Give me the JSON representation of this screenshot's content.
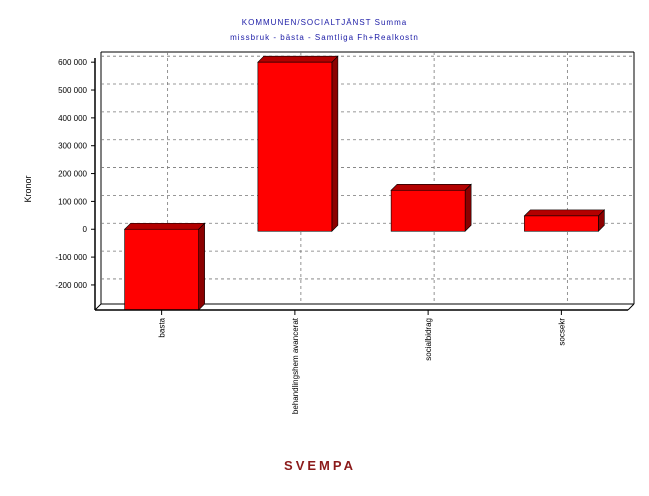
{
  "chart_data": {
    "type": "bar",
    "title": "KOMMUNEN/SOCIALTJÄNST Summa",
    "subtitle": "missbruk - bästa - Samtliga Fh+Realkostn",
    "xlabel": "SVEMPA",
    "ylabel": "Kronor",
    "categories": [
      "basta",
      "behandlingshem avancerat",
      "socialbidrag",
      "socsekr"
    ],
    "values": [
      -280000,
      600000,
      140000,
      48000
    ],
    "ylim": [
      -290000,
      615000
    ],
    "yticks": [
      {
        "value": 600000,
        "label": "600 000"
      },
      {
        "value": 500000,
        "label": "500 000"
      },
      {
        "value": 400000,
        "label": "400 000"
      },
      {
        "value": 300000,
        "label": "300 000"
      },
      {
        "value": 200000,
        "label": "200 000"
      },
      {
        "value": 100000,
        "label": "100 000"
      },
      {
        "value": 0,
        "label": "0"
      },
      {
        "value": -100000,
        "label": "-100 000"
      },
      {
        "value": -200000,
        "label": "-200 000"
      }
    ],
    "grid": true,
    "colors": {
      "bar_front": "#ff0000",
      "bar_side": "#8b0000",
      "bar_top": "#b30000",
      "title": "#1a1aa6",
      "xlabel": "#8b1a1a"
    }
  }
}
